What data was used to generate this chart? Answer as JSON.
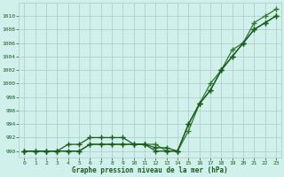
{
  "title": "Graphe pression niveau de la mer (hPa)",
  "background_color": "#d0f0ec",
  "grid_color": "#b0c8c4",
  "line_color_dark": "#1a5c1a",
  "line_color_mid": "#2d7a2d",
  "xlim": [
    -0.5,
    23.5
  ],
  "ylim": [
    989,
    1012
  ],
  "yticks": [
    990,
    992,
    994,
    996,
    998,
    1000,
    1002,
    1004,
    1006,
    1008,
    1010
  ],
  "xticks": [
    0,
    1,
    2,
    3,
    4,
    5,
    6,
    7,
    8,
    9,
    10,
    11,
    12,
    13,
    14,
    15,
    16,
    17,
    18,
    19,
    20,
    21,
    22,
    23
  ],
  "series1": [
    990,
    990,
    990,
    990,
    990,
    990,
    991,
    991,
    991,
    991,
    991,
    991,
    990.5,
    990.5,
    990,
    994,
    997,
    999,
    1002,
    1004,
    1006,
    1008,
    1009,
    1010
  ],
  "series2": [
    990,
    990,
    990,
    990,
    990,
    990,
    991,
    991,
    991,
    991,
    991,
    991,
    991,
    990,
    990,
    993,
    997,
    1000,
    1002,
    1005,
    1006,
    1009,
    1010,
    1011
  ],
  "series3": [
    990,
    990,
    990,
    990,
    991,
    991,
    992,
    992,
    992,
    992,
    991,
    991,
    990,
    990,
    990,
    994,
    997,
    999,
    1002,
    1004,
    1006,
    1008,
    1009,
    1010
  ]
}
